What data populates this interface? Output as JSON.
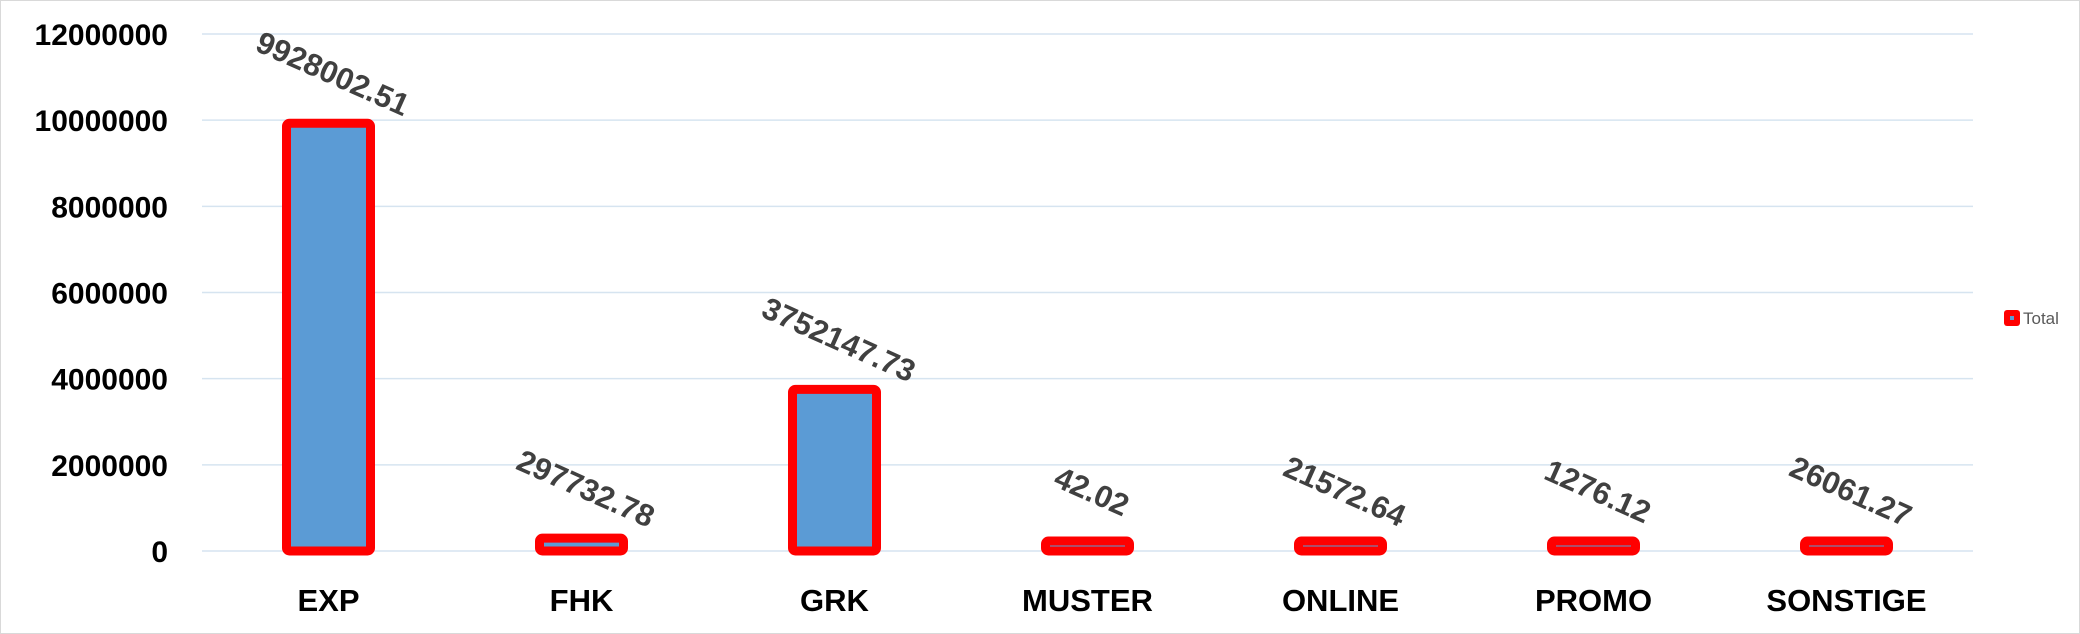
{
  "chart_data": {
    "type": "bar",
    "categories": [
      "EXP",
      "FHK",
      "GRK",
      "MUSTER",
      "ONLINE",
      "PROMO",
      "SONSTIGE"
    ],
    "series": [
      {
        "name": "Total",
        "values": [
          9928002.51,
          297732.78,
          3752147.73,
          42.02,
          21572.64,
          1276.12,
          26061.27
        ],
        "data_labels": [
          "9928002.51",
          "297732.78",
          "3752147.73",
          "42.02",
          "21572.64",
          "1276.12",
          "26061.27"
        ]
      }
    ],
    "ylim": [
      0,
      12000000
    ],
    "yticks": [
      "0",
      "2000000",
      "4000000",
      "6000000",
      "8000000",
      "10000000",
      "12000000"
    ],
    "grid": true,
    "legend_position": "right",
    "colors": {
      "bar_fill": "#5b9bd5",
      "bar_border": "#ff0000",
      "grid": "#d6e4f0"
    }
  }
}
